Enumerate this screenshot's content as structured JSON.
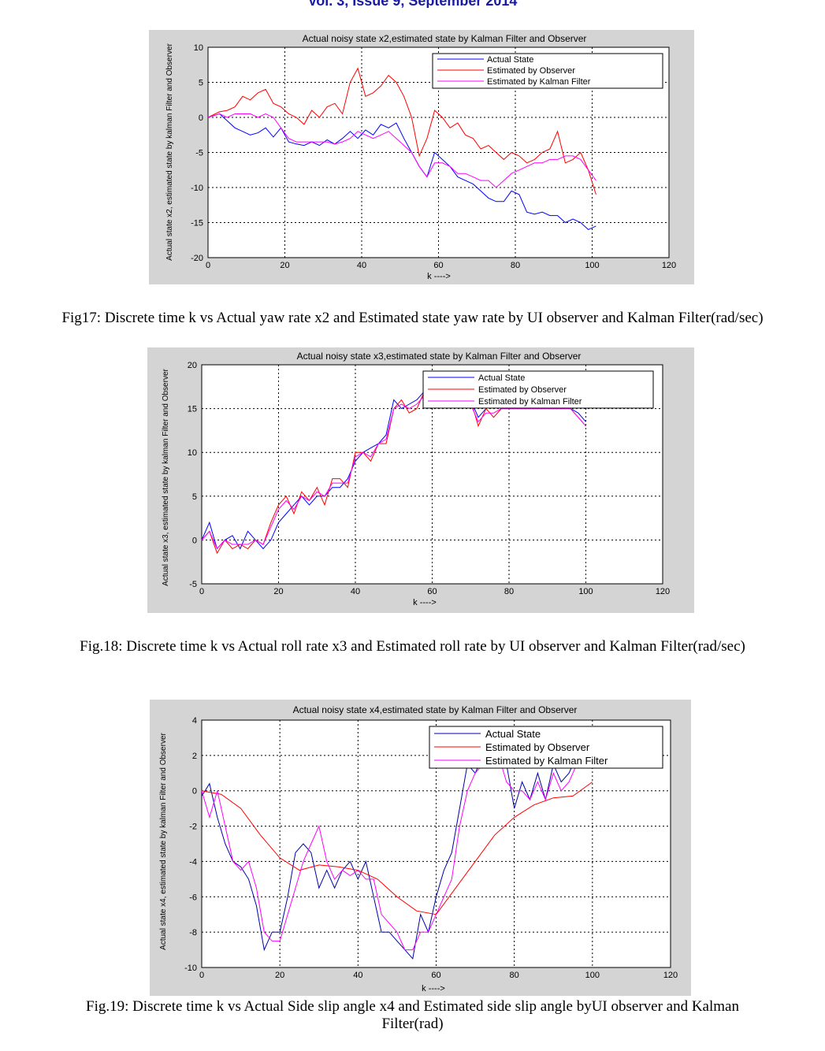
{
  "header": {
    "text": "Vol. 3, Issue 9, September 2014"
  },
  "colors": {
    "actual": "#0000ff",
    "observer": "#ff0000",
    "kalman": "#ff00ff",
    "panel_bg": "#d4d4d4"
  },
  "figures": [
    {
      "id": "fig17",
      "title": "Actual noisy state x2,estimated state by Kalman Filter and Observer",
      "ylabel": "Actual state x2, estimated state by kalman Filter and Observer",
      "xlabel": "k ---->",
      "caption": "Fig17: Discrete time k vs Actual  yaw rate x2 and Estimated state yaw rate by UI observer and Kalman Filter(rad/sec)",
      "legend": [
        "Actual State",
        "Estimated by Observer",
        "Estimated by Kalman Filter"
      ]
    },
    {
      "id": "fig18",
      "title": "Actual noisy state x3,estimated state by Kalman Filter and Observer",
      "ylabel": "Actual state x3, estimated state by kalman Filter and Observer",
      "xlabel": "k ---->",
      "caption": "Fig.18: Discrete time k vs Actual  roll  rate x3 and Estimated roll rate by UI observer and Kalman Filter(rad/sec)",
      "legend": [
        "Actual State",
        "Estimated by Observer",
        "Estimated by Kalman Filter"
      ]
    },
    {
      "id": "fig19",
      "title": "Actual noisy state x4,estimated state by Kalman Filter and Observer",
      "ylabel": "Actual state x4, estimated state by kalman Filter and Observer",
      "xlabel": "k ---->",
      "caption_line1": "Fig.19: Discrete time k vs Actual Side slip angle x4 and Estimated side slip angle  byUI observer and  Kalman",
      "caption_line2": "Filter(rad)",
      "legend": [
        "Actual State",
        "Estimated by Observer",
        "Estimated by Kalman Filter"
      ]
    }
  ],
  "chart_data": [
    {
      "type": "line",
      "title": "Actual noisy state x2,estimated state by Kalman Filter and Observer",
      "xlabel": "k ---->",
      "ylabel": "Actual state x2, estimated state by kalman Filter and Observer",
      "xlim": [
        0,
        120
      ],
      "ylim": [
        -20,
        10
      ],
      "xticks": [
        0,
        20,
        40,
        60,
        80,
        100,
        120
      ],
      "yticks": [
        -20,
        -15,
        -10,
        -5,
        0,
        5,
        10
      ],
      "grid": true,
      "legend_position": "top-right",
      "series": [
        {
          "name": "Actual State",
          "color": "#0000ff",
          "x": [
            0,
            3,
            5,
            7,
            9,
            11,
            13,
            15,
            17,
            19,
            21,
            23,
            25,
            27,
            29,
            31,
            33,
            35,
            37,
            39,
            41,
            43,
            45,
            47,
            49,
            51,
            53,
            55,
            57,
            59,
            61,
            63,
            65,
            67,
            69,
            71,
            73,
            75,
            77,
            79,
            81,
            83,
            85,
            87,
            89,
            91,
            93,
            95,
            97,
            99,
            101
          ],
          "y": [
            0,
            0.5,
            -0.5,
            -1.5,
            -2,
            -2.5,
            -2.2,
            -1.5,
            -2.8,
            -1.5,
            -3.5,
            -3.8,
            -4,
            -3.5,
            -4,
            -3.2,
            -3.8,
            -3,
            -2,
            -3,
            -1.8,
            -2.5,
            -1,
            -1.5,
            -0.8,
            -3,
            -5,
            -7,
            -8.5,
            -5,
            -6,
            -7,
            -8.5,
            -9,
            -9.5,
            -10.5,
            -11.5,
            -12,
            -12,
            -10.5,
            -11,
            -13.5,
            -13.8,
            -13.5,
            -14,
            -14,
            -15,
            -14.5,
            -15,
            -16,
            -15.5
          ]
        },
        {
          "name": "Estimated by Observer",
          "color": "#ff0000",
          "x": [
            0,
            3,
            5,
            7,
            9,
            11,
            13,
            15,
            17,
            19,
            21,
            23,
            25,
            27,
            29,
            31,
            33,
            35,
            37,
            39,
            41,
            43,
            45,
            47,
            49,
            51,
            53,
            55,
            57,
            59,
            61,
            63,
            65,
            67,
            69,
            71,
            73,
            75,
            77,
            79,
            81,
            83,
            85,
            87,
            89,
            91,
            93,
            95,
            97,
            99,
            101
          ],
          "y": [
            0,
            0.8,
            1,
            1.5,
            3,
            2.5,
            3.5,
            4,
            2,
            1.5,
            0.5,
            0,
            -1,
            1,
            0,
            1.5,
            2,
            0.5,
            5,
            7,
            3,
            3.5,
            4.5,
            6,
            5,
            3,
            0,
            -5.5,
            -3,
            1,
            0,
            -1.5,
            -0.8,
            -2.5,
            -3,
            -4.5,
            -4,
            -5,
            -6,
            -5,
            -5.5,
            -6.5,
            -6,
            -5,
            -4.5,
            -2,
            -6.5,
            -6,
            -5,
            -7.5,
            -11
          ]
        },
        {
          "name": "Estimated by Kalman Filter",
          "color": "#ff00ff",
          "x": [
            0,
            3,
            5,
            7,
            9,
            11,
            13,
            15,
            17,
            19,
            21,
            23,
            25,
            27,
            29,
            31,
            33,
            35,
            37,
            39,
            41,
            43,
            45,
            47,
            49,
            51,
            53,
            55,
            57,
            59,
            61,
            63,
            65,
            67,
            69,
            71,
            73,
            75,
            77,
            79,
            81,
            83,
            85,
            87,
            89,
            91,
            93,
            95,
            97,
            99,
            101
          ],
          "y": [
            0,
            0.5,
            0,
            0.5,
            0.5,
            0.5,
            0,
            0.5,
            0,
            -1.5,
            -3,
            -3.5,
            -3.5,
            -3.5,
            -3.5,
            -3.5,
            -3.8,
            -3.5,
            -3,
            -2,
            -2.5,
            -3,
            -2.5,
            -2,
            -3,
            -4,
            -5,
            -7,
            -8.5,
            -6.5,
            -6.5,
            -7,
            -8,
            -8,
            -8.5,
            -9,
            -9,
            -10,
            -9,
            -8,
            -7.5,
            -7,
            -6.5,
            -6.5,
            -6,
            -6,
            -5.5,
            -5.5,
            -6,
            -7.5,
            -9
          ]
        }
      ]
    },
    {
      "type": "line",
      "title": "Actual noisy state x3,estimated state by Kalman Filter and Observer",
      "xlabel": "k ---->",
      "ylabel": "Actual state x3, estimated state by kalman Filter and Observer",
      "xlim": [
        0,
        120
      ],
      "ylim": [
        -5,
        20
      ],
      "xticks": [
        0,
        20,
        40,
        60,
        80,
        100,
        120
      ],
      "yticks": [
        -5,
        0,
        5,
        10,
        15,
        20
      ],
      "grid": true,
      "legend_position": "top-right",
      "series": [
        {
          "name": "Actual State",
          "color": "#0000ff",
          "x": [
            0,
            2,
            4,
            6,
            8,
            10,
            12,
            14,
            16,
            18,
            20,
            22,
            24,
            26,
            28,
            30,
            32,
            34,
            36,
            38,
            40,
            42,
            44,
            46,
            48,
            50,
            52,
            54,
            56,
            58,
            60,
            62,
            64,
            66,
            68,
            70,
            72,
            74,
            76,
            78,
            80,
            82,
            84,
            86,
            88,
            90,
            92,
            94,
            96,
            98,
            100
          ],
          "y": [
            0,
            2,
            -1,
            0,
            0.5,
            -1,
            1,
            0,
            -1,
            0,
            2,
            3,
            4,
            5,
            4,
            5,
            5,
            6,
            6,
            7,
            9,
            10,
            10.5,
            11,
            12,
            16,
            15,
            15.5,
            16,
            17,
            18,
            16.5,
            16,
            16,
            15.5,
            16,
            14,
            15,
            15.5,
            15,
            15,
            15,
            15,
            15,
            15,
            15,
            15,
            15,
            15,
            14.5,
            13.5
          ]
        },
        {
          "name": "Estimated by Observer",
          "color": "#ff0000",
          "x": [
            0,
            2,
            4,
            6,
            8,
            10,
            12,
            14,
            16,
            18,
            20,
            22,
            24,
            26,
            28,
            30,
            32,
            34,
            36,
            38,
            40,
            42,
            44,
            46,
            48,
            50,
            52,
            54,
            56,
            58,
            60,
            62,
            64,
            66,
            68,
            70,
            72,
            74,
            76,
            78,
            80,
            82,
            84,
            86,
            88,
            90,
            92,
            94,
            96,
            98,
            100
          ],
          "y": [
            0,
            1,
            -1.5,
            0,
            -1,
            -0.5,
            -1,
            0,
            -0.5,
            2,
            4,
            5,
            3,
            5.5,
            4.5,
            6,
            4,
            7,
            7,
            6,
            10,
            10,
            9,
            11,
            11,
            15,
            16,
            14.5,
            15,
            17,
            17,
            16.5,
            16.5,
            16,
            15.5,
            16,
            13,
            15,
            14,
            15,
            15,
            15,
            15,
            15,
            15,
            15,
            15,
            15,
            15,
            14,
            13
          ]
        },
        {
          "name": "Estimated by Kalman Filter",
          "color": "#ff00ff",
          "x": [
            0,
            2,
            4,
            6,
            8,
            10,
            12,
            14,
            16,
            18,
            20,
            22,
            24,
            26,
            28,
            30,
            32,
            34,
            36,
            38,
            40,
            42,
            44,
            46,
            48,
            50,
            52,
            54,
            56,
            58,
            60,
            62,
            64,
            66,
            68,
            70,
            72,
            74,
            76,
            78,
            80,
            82,
            84,
            86,
            88,
            90,
            92,
            94,
            96,
            98,
            100
          ],
          "y": [
            0,
            1,
            -1,
            0,
            -0.5,
            -0.5,
            -0.5,
            0,
            -0.5,
            1.5,
            3.5,
            4.5,
            3.5,
            5,
            4.5,
            5.5,
            5,
            6.5,
            6.5,
            6.5,
            9.5,
            10,
            9.5,
            11,
            11.5,
            15,
            15.5,
            15,
            15.5,
            16.5,
            17,
            16.5,
            16,
            16,
            15.5,
            15.5,
            13.5,
            14.5,
            14.5,
            15,
            15,
            15,
            15,
            15,
            15,
            15,
            15,
            15,
            15,
            14,
            13
          ]
        }
      ]
    },
    {
      "type": "line",
      "title": "Actual noisy state x4,estimated state by Kalman Filter and Observer",
      "xlabel": "k ---->",
      "ylabel": "Actual state x4, estimated state by kalman Filter and Observer",
      "xlim": [
        0,
        120
      ],
      "ylim": [
        -10,
        4
      ],
      "xticks": [
        0,
        20,
        40,
        60,
        80,
        100,
        120
      ],
      "yticks": [
        -10,
        -8,
        -6,
        -4,
        -2,
        0,
        2,
        4
      ],
      "grid": true,
      "legend_position": "top-right",
      "series": [
        {
          "name": "Actual State",
          "color": "#0000aa",
          "x": [
            0,
            2,
            4,
            6,
            8,
            10,
            12,
            14,
            16,
            18,
            20,
            22,
            24,
            26,
            28,
            30,
            32,
            34,
            36,
            38,
            40,
            42,
            44,
            46,
            48,
            50,
            52,
            54,
            56,
            58,
            60,
            62,
            64,
            66,
            68,
            70,
            72,
            74,
            76,
            78,
            80,
            82,
            84,
            86,
            88,
            90,
            92,
            94,
            96
          ],
          "y": [
            -0.3,
            0.4,
            -1.5,
            -3,
            -4,
            -4.3,
            -5,
            -6.5,
            -9,
            -8,
            -8,
            -6,
            -3.5,
            -3,
            -3.5,
            -5.5,
            -4.5,
            -5.5,
            -4.5,
            -4,
            -5,
            -4,
            -6,
            -8,
            -8,
            -8.5,
            -9,
            -9.5,
            -7,
            -8,
            -6,
            -4.5,
            -3.5,
            -1,
            1.5,
            1,
            2,
            2,
            2.5,
            1.5,
            -1,
            0.5,
            -0.5,
            1,
            -0.5,
            1.5,
            0.5,
            1,
            2
          ]
        },
        {
          "name": "Estimated by Observer",
          "color": "#ff0000",
          "x": [
            0,
            5,
            10,
            15,
            20,
            25,
            30,
            35,
            40,
            45,
            50,
            55,
            60,
            65,
            70,
            75,
            80,
            85,
            90,
            95,
            100
          ],
          "y": [
            0,
            -0.2,
            -1,
            -2.5,
            -3.8,
            -4.5,
            -4.2,
            -4.3,
            -4.5,
            -5,
            -6,
            -6.8,
            -7,
            -5.5,
            -4,
            -2.5,
            -1.5,
            -0.8,
            -0.4,
            -0.3,
            0.5
          ]
        },
        {
          "name": "Estimated by Kalman Filter",
          "color": "#ff00ff",
          "x": [
            0,
            2,
            4,
            6,
            8,
            10,
            12,
            14,
            16,
            18,
            20,
            22,
            24,
            26,
            28,
            30,
            32,
            34,
            36,
            38,
            40,
            42,
            44,
            46,
            48,
            50,
            52,
            54,
            56,
            58,
            60,
            62,
            64,
            66,
            68,
            70,
            72,
            74,
            76,
            78,
            80,
            82,
            84,
            86,
            88,
            90,
            92,
            94,
            96
          ],
          "y": [
            0,
            -1.5,
            0,
            -2,
            -4,
            -4.5,
            -4,
            -5.5,
            -8,
            -8.5,
            -8.5,
            -7,
            -5.5,
            -4,
            -3,
            -2,
            -4,
            -5,
            -4.5,
            -4.8,
            -4.5,
            -5,
            -5,
            -7,
            -7.5,
            -8,
            -9,
            -9,
            -8,
            -8,
            -7,
            -6,
            -5,
            -2,
            0,
            1,
            1.5,
            2,
            2,
            0.5,
            0,
            0,
            -0.5,
            0.5,
            -0.5,
            1,
            0,
            0.5,
            1.5
          ]
        }
      ]
    }
  ]
}
